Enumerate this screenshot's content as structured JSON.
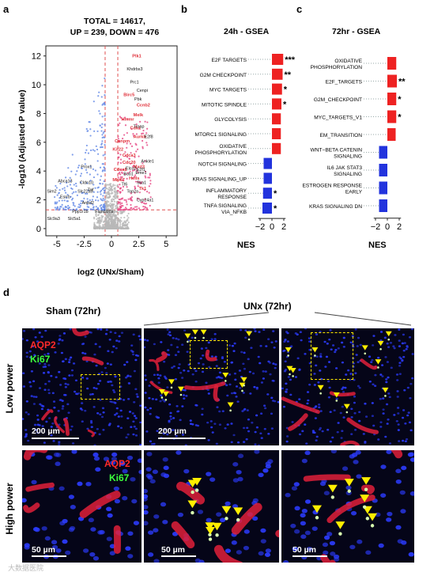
{
  "panel_a": {
    "letter": "a",
    "stats_line1": "TOTAL = 14617,",
    "stats_line2": "UP = 239, DOWN = 476",
    "xlabel": "log2 (UNx/Sham)",
    "ylabel": "-log10 (Adjusted P value)",
    "x_ticks": [
      "-5",
      "-2.5",
      "0",
      "2.5",
      "5"
    ],
    "y_ticks": [
      "0",
      "2",
      "4",
      "6",
      "8",
      "10",
      "12"
    ],
    "up_genes": [
      "Plk1",
      "Birc5",
      "Ccnb2",
      "Melk",
      "Hmmr",
      "Cdk1",
      "Aurkb",
      "Cenpm",
      "Kif22",
      "Cdca3",
      "Cdc20",
      "Mxd3",
      "Cdca8",
      "Mki67",
      "Hells",
      "Tk1"
    ],
    "other_genes": [
      "Khdrbs3",
      "Prc1",
      "Cenpi",
      "Pbk",
      "Troap",
      "E2f8",
      "Ankle1",
      "Elco2",
      "E2f1",
      "Bub1",
      "Ska1",
      "Eme1",
      "Tt6",
      "Top2a",
      "Cyp24a1",
      "Prox1",
      "Abca13",
      "Cldn10",
      "Sim2",
      "Esrrb",
      "Slc22a5",
      "Tnf",
      "Ankd2",
      "Ppp1r1b",
      "Fam107a",
      "Slc9a3",
      "Slc5a1"
    ]
  },
  "panel_b": {
    "letter": "b",
    "title": "24h - GSEA",
    "xlabel": "NES",
    "x_ticks": [
      "−2",
      "0",
      "2"
    ],
    "rows": [
      {
        "label": "E2F TARGETS",
        "nes": 1.9,
        "sig": "***"
      },
      {
        "label": "G2M CHECKPOINT",
        "nes": 1.8,
        "sig": "**"
      },
      {
        "label": "MYC TARGETS",
        "nes": 1.7,
        "sig": "*"
      },
      {
        "label": "MITOTIC SPINDLE",
        "nes": 1.6,
        "sig": "*"
      },
      {
        "label": "GLYCOLYSIS",
        "nes": 1.5,
        "sig": ""
      },
      {
        "label": "MTORC1 SIGNALING",
        "nes": 1.5,
        "sig": ""
      },
      {
        "label": "OXIDATIVE\nPHOSPHORYLATION",
        "nes": 1.5,
        "sig": ""
      },
      {
        "label": "NOTCH SIGNALING",
        "nes": -1.4,
        "sig": ""
      },
      {
        "label": "KRAS SIGNALING_UP",
        "nes": -1.4,
        "sig": ""
      },
      {
        "label": "INFLAMMATORY\nRESPONSE",
        "nes": -1.5,
        "sig": "*"
      },
      {
        "label": "TNFA SIGNALING\nVIA_NFKB",
        "nes": -1.6,
        "sig": "*"
      }
    ]
  },
  "panel_c": {
    "letter": "c",
    "title": "72hr - GSEA",
    "xlabel": "NES",
    "x_ticks": [
      "−2",
      "0",
      "2"
    ],
    "rows": [
      {
        "label": "OXIDATIVE\nPHOSPHORYLATION",
        "nes": 1.5,
        "sig": ""
      },
      {
        "label": "E2F_TARGETS",
        "nes": 1.6,
        "sig": "**"
      },
      {
        "label": "G2M_CHECKPOINT",
        "nes": 1.5,
        "sig": "*"
      },
      {
        "label": "MYC_TARGETS_V1",
        "nes": 1.5,
        "sig": "*"
      },
      {
        "label": "EM_TRANSITION",
        "nes": 1.4,
        "sig": ""
      },
      {
        "label": "WNT−BETA CATENIN\nSIGNALING",
        "nes": -1.4,
        "sig": ""
      },
      {
        "label": "IL6 JAK STAT3\nSIGNALING",
        "nes": -1.4,
        "sig": ""
      },
      {
        "label": "ESTROGEN RESPONSE\nEARLY",
        "nes": -1.4,
        "sig": ""
      },
      {
        "label": "KRAS SIGNALING DN",
        "nes": -1.4,
        "sig": ""
      }
    ]
  },
  "panel_d": {
    "letter": "d",
    "sham_title": "Sham (72hr)",
    "unx_title": "UNx (72hr)",
    "row_low": "Low power",
    "row_high": "High power",
    "channel_red": "AQP2",
    "channel_green": "Ki67",
    "scale_low": "200 µm",
    "scale_high": "50 µm",
    "watermark": "大数据医院"
  },
  "colors": {
    "up": "#ee2222",
    "up_gene_label": "#e0303a",
    "down": "#2233dd",
    "scatter_up": "#e8508a",
    "scatter_down": "#6a8ee8",
    "scatter_ns": "#b8b8b8",
    "threshold": "#e05050"
  }
}
